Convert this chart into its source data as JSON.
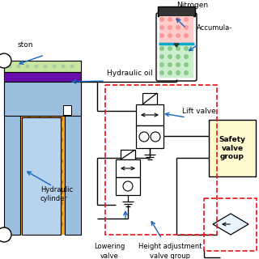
{
  "bg_color": "#ffffff",
  "blue_arrow": "#1565C0",
  "labels": {
    "piston": "ston",
    "hydraulic_oil": "Hydraulic oil",
    "hydraulic_cylinder": "Hydraulic\ncylinder",
    "nitrogen": "Nitrogen",
    "accumulator": "Accumula-",
    "lift_valve": "Lift valve",
    "lowering_valve": "Lowering\nvalve",
    "height_adj": "Height adjustment\nvalve group",
    "safety_valve": "Safety\nvalve\ngroup"
  },
  "colors": {
    "orange_bg": "#F5A623",
    "orange_dot": "#C87020",
    "light_blue_wall": "#9BBFDF",
    "light_blue_inner": "#B8D4ED",
    "piston_green": "#C8E6A0",
    "piston_purple": "#6A0DAD",
    "white": "#FFFFFF",
    "dark": "#111111",
    "acc_pink": "#FFCCCC",
    "acc_pink_dot": "#FF9999",
    "acc_green": "#CCEECC",
    "acc_green_dot": "#88CC88",
    "acc_cyan": "#00AACC",
    "yellow_box": "#FFFACD",
    "red_dash": "#EE1111"
  }
}
